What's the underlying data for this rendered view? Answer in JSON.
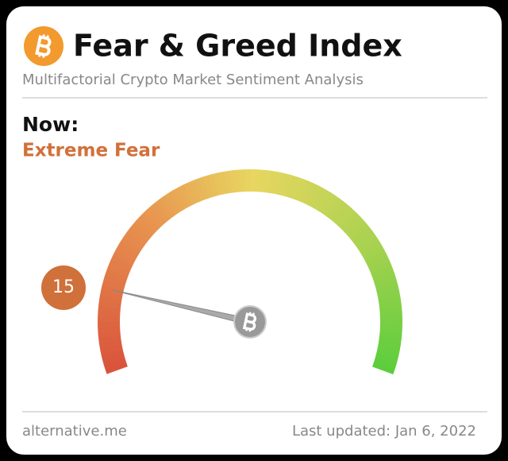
{
  "chart_data": {
    "type": "gauge",
    "title": "Fear & Greed Index",
    "subtitle": "Multifactorial Crypto Market Sentiment Analysis",
    "value_heading": "Now:",
    "classification": "Extreme Fear",
    "value": 15,
    "ylim": [
      0,
      100
    ],
    "source": "alternative.me",
    "updated": "Last updated: Jan 6, 2022"
  }
}
